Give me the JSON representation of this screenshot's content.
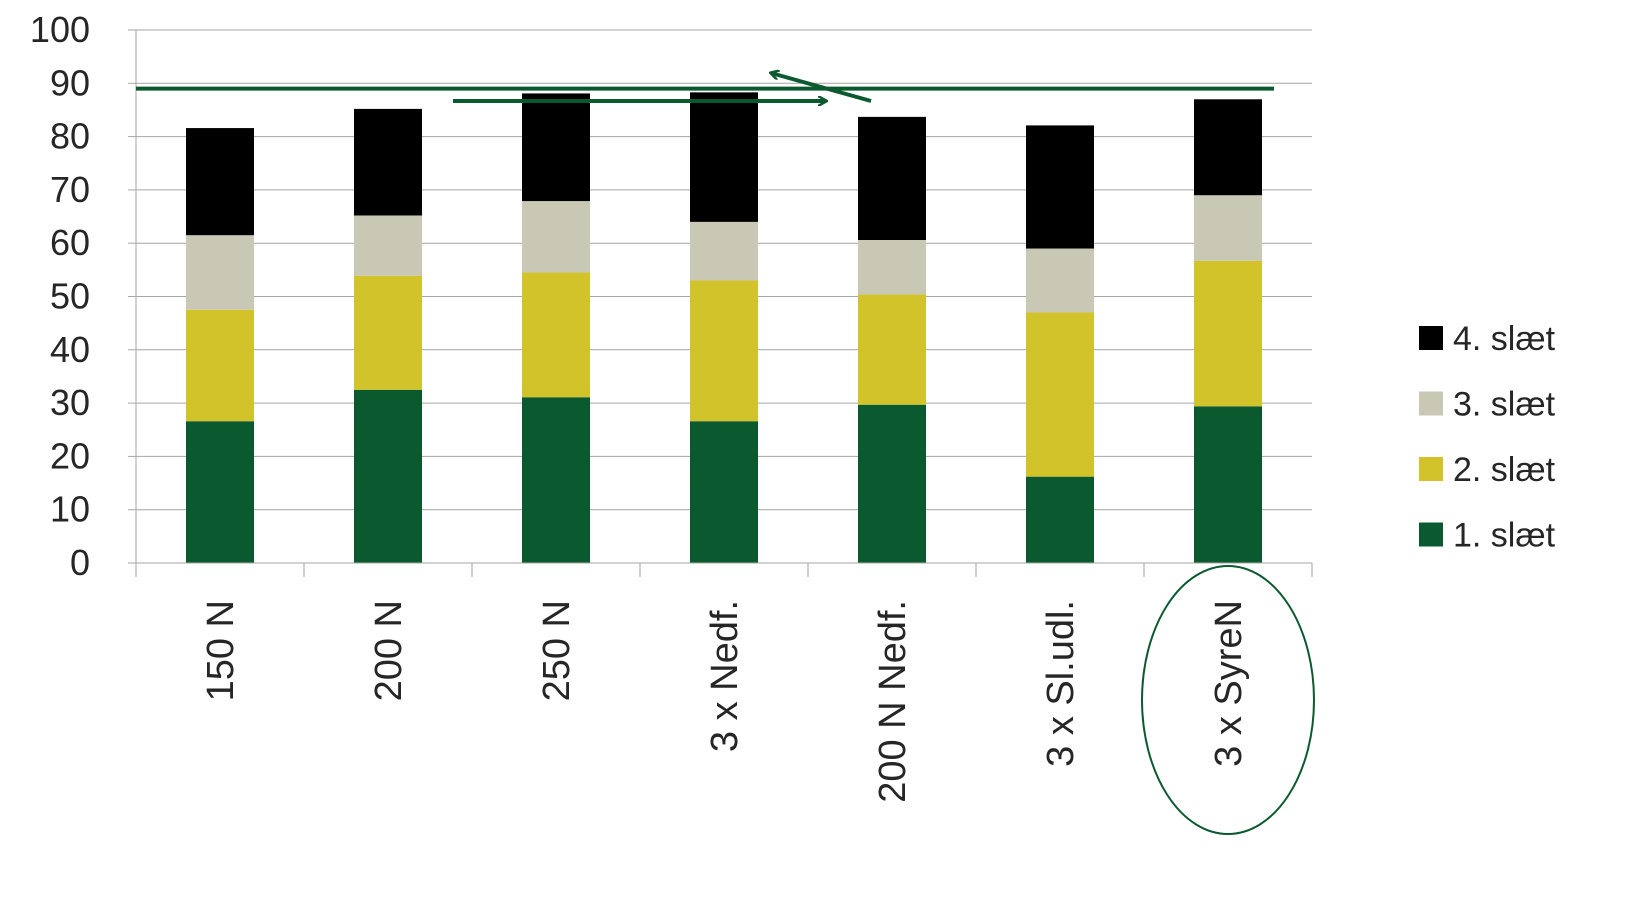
{
  "chart_data": {
    "type": "bar",
    "stacked": true,
    "categories": [
      "150 N",
      "200 N",
      "250 N",
      "3 x Nedf.",
      "200 N  Nedf.",
      "3 x Sl.udl.",
      "3 x SyreN"
    ],
    "series": [
      {
        "name": "1. slæt",
        "color": "#0b5a2f",
        "values": [
          26.6,
          32.5,
          31.1,
          26.6,
          29.7,
          16.2,
          29.4
        ]
      },
      {
        "name": "2. slæt",
        "color": "#d2c32a",
        "values": [
          20.9,
          21.4,
          23.4,
          26.4,
          20.7,
          30.8,
          27.3
        ]
      },
      {
        "name": "3. slæt",
        "color": "#c8c8b4",
        "values": [
          14.0,
          11.3,
          13.4,
          11.0,
          10.2,
          12.0,
          12.3
        ]
      },
      {
        "name": "4. slæt",
        "color": "#000000",
        "values": [
          20.1,
          20.0,
          20.2,
          24.3,
          23.1,
          23.1,
          18.0
        ]
      }
    ],
    "yticks": [
      0,
      10,
      20,
      30,
      40,
      50,
      60,
      70,
      80,
      90,
      100
    ],
    "ylim": [
      0,
      100
    ],
    "grid": true,
    "legend_position": "right",
    "annotations": {
      "reference_line": {
        "y": 89,
        "color": "#0b5a2f"
      },
      "highlight_category": "3 x SyreN",
      "arrows_color": "#0b5a2f"
    }
  }
}
